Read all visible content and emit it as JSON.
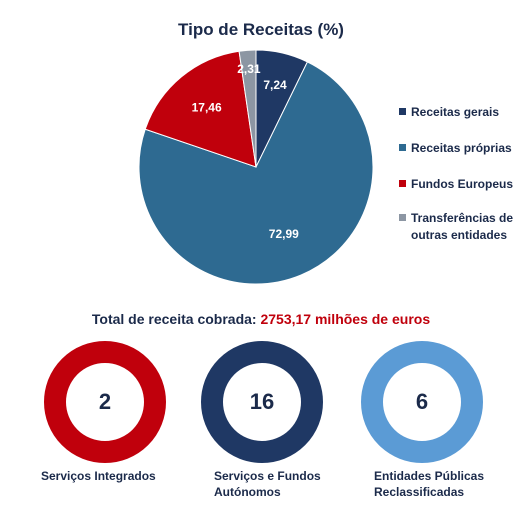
{
  "chart_data": {
    "type": "pie",
    "title": "Tipo de Receitas (%)",
    "slices": [
      {
        "label": "Receitas gerais",
        "value": 7.24,
        "display": "7,24",
        "color": "#1f3864"
      },
      {
        "label": "Receitas próprias",
        "value": 72.99,
        "display": "72,99",
        "color": "#2e6a91"
      },
      {
        "label": "Fundos Europeus",
        "value": 17.46,
        "display": "17,46",
        "color": "#c0000c"
      },
      {
        "label": "Transferências de outras entidades",
        "value": 2.31,
        "display": "2,31",
        "color": "#8c96a3"
      }
    ],
    "legend_placement": "right"
  },
  "total": {
    "label": "Total de receita cobrada:",
    "value": "2753,17 milhões de euros"
  },
  "kpis": [
    {
      "value": "2",
      "label": "Serviços Integrados",
      "color": "#c0000c"
    },
    {
      "value": "16",
      "label": "Serviços e Fundos Autónomos",
      "color": "#1f3864"
    },
    {
      "value": "6",
      "label": "Entidades Públicas Reclassificadas",
      "color": "#5b9bd5"
    }
  ]
}
